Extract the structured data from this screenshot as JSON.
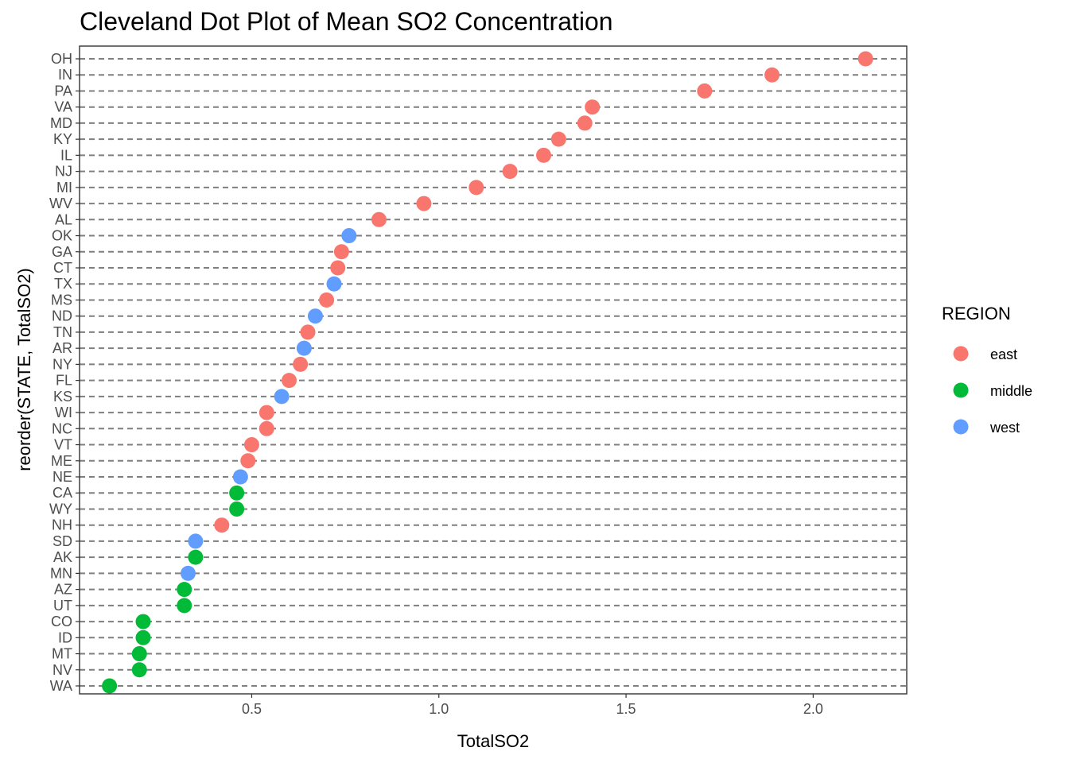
{
  "chart_data": {
    "type": "scatter",
    "title": "Cleveland Dot Plot of Mean SO2 Concentration",
    "xlabel": "TotalSO2",
    "ylabel": "reorder(STATE, TotalSO2)",
    "xlim": [
      0.04,
      2.25
    ],
    "x_ticks": [
      "0.5",
      "1.0",
      "1.5",
      "2.0"
    ],
    "x_tick_values": [
      0.5,
      1.0,
      1.5,
      2.0
    ],
    "grid": "horizontal dashed",
    "legend": {
      "title": "REGION",
      "placement": "right",
      "entries": [
        {
          "name": "east",
          "color": "#F8766D"
        },
        {
          "name": "middle",
          "color": "#00BA38"
        },
        {
          "name": "west",
          "color": "#619CFF"
        }
      ]
    },
    "points": [
      {
        "state": "OH",
        "value": 2.14,
        "region": "east"
      },
      {
        "state": "IN",
        "value": 1.89,
        "region": "east"
      },
      {
        "state": "PA",
        "value": 1.71,
        "region": "east"
      },
      {
        "state": "VA",
        "value": 1.41,
        "region": "east"
      },
      {
        "state": "MD",
        "value": 1.39,
        "region": "east"
      },
      {
        "state": "KY",
        "value": 1.32,
        "region": "east"
      },
      {
        "state": "IL",
        "value": 1.28,
        "region": "east"
      },
      {
        "state": "NJ",
        "value": 1.19,
        "region": "east"
      },
      {
        "state": "MI",
        "value": 1.1,
        "region": "east"
      },
      {
        "state": "WV",
        "value": 0.96,
        "region": "east"
      },
      {
        "state": "AL",
        "value": 0.84,
        "region": "east"
      },
      {
        "state": "OK",
        "value": 0.76,
        "region": "west"
      },
      {
        "state": "GA",
        "value": 0.74,
        "region": "east"
      },
      {
        "state": "CT",
        "value": 0.73,
        "region": "east"
      },
      {
        "state": "TX",
        "value": 0.72,
        "region": "west"
      },
      {
        "state": "MS",
        "value": 0.7,
        "region": "east"
      },
      {
        "state": "ND",
        "value": 0.67,
        "region": "west"
      },
      {
        "state": "TN",
        "value": 0.65,
        "region": "east"
      },
      {
        "state": "AR",
        "value": 0.64,
        "region": "west"
      },
      {
        "state": "NY",
        "value": 0.63,
        "region": "east"
      },
      {
        "state": "FL",
        "value": 0.6,
        "region": "east"
      },
      {
        "state": "KS",
        "value": 0.58,
        "region": "west"
      },
      {
        "state": "WI",
        "value": 0.54,
        "region": "east"
      },
      {
        "state": "NC",
        "value": 0.54,
        "region": "east"
      },
      {
        "state": "VT",
        "value": 0.5,
        "region": "east"
      },
      {
        "state": "ME",
        "value": 0.49,
        "region": "east"
      },
      {
        "state": "NE",
        "value": 0.47,
        "region": "west"
      },
      {
        "state": "CA",
        "value": 0.46,
        "region": "middle"
      },
      {
        "state": "WY",
        "value": 0.46,
        "region": "middle"
      },
      {
        "state": "NH",
        "value": 0.42,
        "region": "east"
      },
      {
        "state": "SD",
        "value": 0.35,
        "region": "west"
      },
      {
        "state": "AK",
        "value": 0.35,
        "region": "middle"
      },
      {
        "state": "MN",
        "value": 0.33,
        "region": "west"
      },
      {
        "state": "AZ",
        "value": 0.32,
        "region": "middle"
      },
      {
        "state": "UT",
        "value": 0.32,
        "region": "middle"
      },
      {
        "state": "CO",
        "value": 0.21,
        "region": "middle"
      },
      {
        "state": "ID",
        "value": 0.21,
        "region": "middle"
      },
      {
        "state": "MT",
        "value": 0.2,
        "region": "middle"
      },
      {
        "state": "NV",
        "value": 0.2,
        "region": "middle"
      },
      {
        "state": "WA",
        "value": 0.12,
        "region": "middle"
      }
    ]
  }
}
